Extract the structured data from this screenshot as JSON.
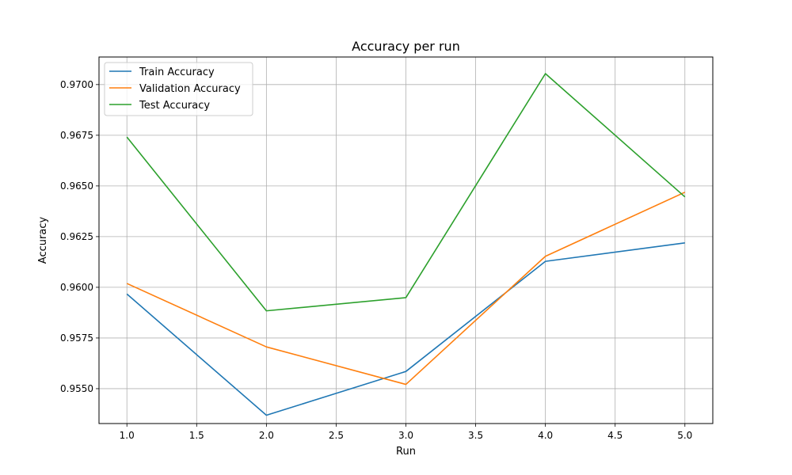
{
  "chart_data": {
    "type": "line",
    "title": "Accuracy per run",
    "xlabel": "Run",
    "ylabel": "Accuracy",
    "xlim": [
      0.8,
      5.2
    ],
    "ylim": [
      0.95328,
      0.97136
    ],
    "xticks": [
      1.0,
      1.5,
      2.0,
      2.5,
      3.0,
      3.5,
      4.0,
      4.5,
      5.0
    ],
    "xtick_labels": [
      "1.0",
      "1.5",
      "2.0",
      "2.5",
      "3.0",
      "3.5",
      "4.0",
      "4.5",
      "5.0"
    ],
    "yticks": [
      0.955,
      0.9575,
      0.96,
      0.9625,
      0.965,
      0.9675,
      0.97
    ],
    "ytick_labels": [
      "0.9550",
      "0.9575",
      "0.9600",
      "0.9625",
      "0.9650",
      "0.9675",
      "0.9700"
    ],
    "grid": true,
    "legend_position": "top-left",
    "x": [
      1,
      2,
      3,
      4,
      5
    ],
    "series": [
      {
        "name": "Train Accuracy",
        "color": "#1f77b4",
        "values": [
          0.95967,
          0.95369,
          0.95585,
          0.96128,
          0.96219
        ]
      },
      {
        "name": "Validation Accuracy",
        "color": "#ff7f0e",
        "values": [
          0.96019,
          0.95706,
          0.95521,
          0.96153,
          0.96469
        ]
      },
      {
        "name": "Test Accuracy",
        "color": "#2ca02c",
        "values": [
          0.96741,
          0.95884,
          0.95949,
          0.97054,
          0.96446
        ]
      }
    ]
  }
}
